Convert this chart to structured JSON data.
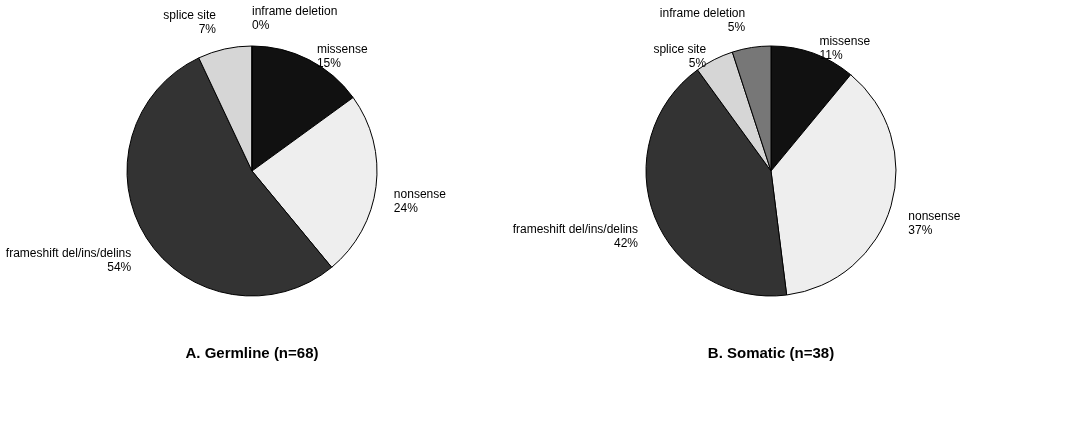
{
  "chart_data": [
    {
      "type": "pie",
      "title": "A.  Germline (n=68)",
      "categories": [
        "missense",
        "nonsense",
        "frameshift del/ins/delins",
        "splice site",
        "inframe deletion"
      ],
      "values": [
        15,
        24,
        54,
        7,
        0
      ],
      "value_labels": [
        "15%",
        "24%",
        "54%",
        "7%",
        "0%"
      ],
      "colors": [
        "#111111",
        "#eeeeee",
        "#333333",
        "#d6d6d6",
        "#777777"
      ]
    },
    {
      "type": "pie",
      "title": "B.  Somatic (n=38)",
      "categories": [
        "missense",
        "nonsense",
        "frameshift del/ins/delins",
        "splice site",
        "inframe deletion"
      ],
      "values": [
        11,
        37,
        42,
        5,
        5
      ],
      "value_labels": [
        "11%",
        "37%",
        "42%",
        "5%",
        "5%"
      ],
      "colors": [
        "#111111",
        "#eeeeee",
        "#333333",
        "#d6d6d6",
        "#777777"
      ]
    }
  ]
}
